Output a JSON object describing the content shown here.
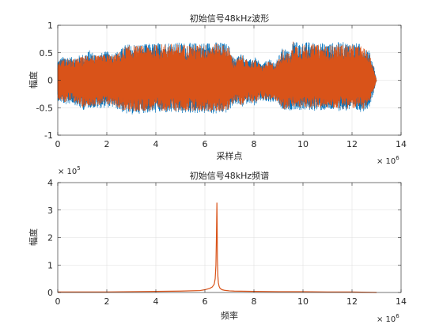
{
  "chart_data": [
    {
      "type": "line",
      "title": "初始信号48kHz波形",
      "xlabel": "采样点",
      "ylabel": "幅度",
      "xlim": [
        0,
        14000000
      ],
      "ylim": [
        -1,
        1
      ],
      "x_ticks": [
        0,
        2,
        4,
        6,
        8,
        10,
        12,
        14
      ],
      "x_tick_labels": [
        "0",
        "2",
        "4",
        "6",
        "8",
        "10",
        "12",
        "14"
      ],
      "x_exponent_base": "× 10",
      "x_exponent_power": "6",
      "y_ticks": [
        -1,
        -0.5,
        0,
        0.5,
        1
      ],
      "y_tick_labels": [
        "-1",
        "-0.5",
        "0",
        "0.5",
        "1"
      ],
      "grid": true,
      "series": [
        {
          "color": "#0072BD",
          "envelope_x": [
            0,
            0.3,
            0.6,
            1.0,
            1.3,
            1.6,
            2.0,
            2.3,
            2.6,
            2.75,
            3.0,
            3.5,
            4.0,
            4.5,
            5.0,
            5.5,
            6.0,
            6.5,
            6.8,
            6.95,
            7.2,
            7.5,
            7.8,
            8.0,
            8.3,
            8.6,
            8.9,
            9.2,
            9.5,
            9.6,
            9.8,
            10.2,
            10.6,
            11.0,
            11.5,
            12.0,
            12.4,
            12.7,
            12.9,
            13.0
          ],
          "envelope_top": [
            0.38,
            0.45,
            0.42,
            0.47,
            0.55,
            0.48,
            0.53,
            0.5,
            0.58,
            0.65,
            0.67,
            0.66,
            0.68,
            0.7,
            0.69,
            0.68,
            0.69,
            0.7,
            0.68,
            0.66,
            0.4,
            0.5,
            0.36,
            0.44,
            0.3,
            0.38,
            0.34,
            0.62,
            0.5,
            0.76,
            0.68,
            0.7,
            0.69,
            0.67,
            0.7,
            0.69,
            0.66,
            0.55,
            0.25,
            0.0
          ],
          "envelope_bottom": [
            -0.38,
            -0.45,
            -0.42,
            -0.55,
            -0.5,
            -0.52,
            -0.5,
            -0.5,
            -0.58,
            -0.62,
            -0.63,
            -0.6,
            -0.6,
            -0.6,
            -0.61,
            -0.6,
            -0.61,
            -0.62,
            -0.6,
            -0.6,
            -0.42,
            -0.5,
            -0.4,
            -0.47,
            -0.38,
            -0.42,
            -0.4,
            -0.58,
            -0.55,
            -0.53,
            -0.55,
            -0.55,
            -0.56,
            -0.55,
            -0.56,
            -0.56,
            -0.58,
            -0.5,
            -0.2,
            0.0
          ]
        },
        {
          "color": "#D95319",
          "envelope_x": [
            0,
            0.3,
            0.6,
            1.0,
            1.3,
            1.6,
            2.0,
            2.3,
            2.6,
            2.75,
            3.0,
            3.5,
            4.0,
            4.5,
            5.0,
            5.5,
            6.0,
            6.5,
            6.8,
            6.95,
            7.2,
            7.5,
            7.8,
            8.0,
            8.3,
            8.6,
            8.9,
            9.2,
            9.5,
            9.6,
            9.8,
            10.2,
            10.6,
            11.0,
            11.5,
            12.0,
            12.4,
            12.7,
            12.9,
            13.0
          ],
          "envelope_top": [
            0.34,
            0.41,
            0.38,
            0.43,
            0.5,
            0.44,
            0.49,
            0.46,
            0.54,
            0.62,
            0.64,
            0.63,
            0.65,
            0.67,
            0.66,
            0.65,
            0.66,
            0.67,
            0.65,
            0.63,
            0.36,
            0.46,
            0.32,
            0.4,
            0.27,
            0.34,
            0.31,
            0.58,
            0.46,
            0.72,
            0.64,
            0.66,
            0.65,
            0.63,
            0.66,
            0.65,
            0.62,
            0.51,
            0.22,
            0.0
          ],
          "envelope_bottom": [
            -0.34,
            -0.41,
            -0.38,
            -0.5,
            -0.46,
            -0.48,
            -0.46,
            -0.46,
            -0.54,
            -0.58,
            -0.59,
            -0.56,
            -0.56,
            -0.56,
            -0.57,
            -0.56,
            -0.57,
            -0.58,
            -0.56,
            -0.56,
            -0.38,
            -0.46,
            -0.36,
            -0.43,
            -0.34,
            -0.38,
            -0.36,
            -0.54,
            -0.51,
            -0.5,
            -0.51,
            -0.51,
            -0.52,
            -0.51,
            -0.52,
            -0.52,
            -0.54,
            -0.46,
            -0.17,
            0.0
          ]
        }
      ]
    },
    {
      "type": "line",
      "title": "初始信号48kHz频谱",
      "xlabel": "频率",
      "ylabel": "幅度",
      "xlim": [
        0,
        14000000
      ],
      "ylim": [
        0,
        400000
      ],
      "x_ticks": [
        0,
        2,
        4,
        6,
        8,
        10,
        12,
        14
      ],
      "x_tick_labels": [
        "0",
        "2",
        "4",
        "6",
        "8",
        "10",
        "12",
        "14"
      ],
      "x_exponent_base": "× 10",
      "x_exponent_power": "6",
      "y_ticks": [
        0,
        1,
        2,
        3,
        4
      ],
      "y_tick_labels": [
        "0",
        "1",
        "2",
        "3",
        "4"
      ],
      "y_exponent_base": "× 10",
      "y_exponent_power": "5",
      "grid": true,
      "series": [
        {
          "color": "#D95319",
          "x": [
            0,
            1,
            2,
            3,
            4,
            5,
            5.8,
            6.0,
            6.2,
            6.3,
            6.38,
            6.42,
            6.45,
            6.47,
            6.49,
            6.5,
            6.51,
            6.53,
            6.55,
            6.58,
            6.62,
            6.7,
            6.8,
            7.0,
            7.2,
            8,
            9,
            10,
            11,
            12,
            13.0
          ],
          "y": [
            0.02,
            0.02,
            0.02,
            0.03,
            0.04,
            0.05,
            0.07,
            0.1,
            0.15,
            0.2,
            0.3,
            0.5,
            1.0,
            2.0,
            3.27,
            2.5,
            1.2,
            0.6,
            0.35,
            0.22,
            0.15,
            0.1,
            0.08,
            0.06,
            0.05,
            0.04,
            0.03,
            0.03,
            0.02,
            0.02,
            0.0
          ]
        }
      ]
    }
  ]
}
